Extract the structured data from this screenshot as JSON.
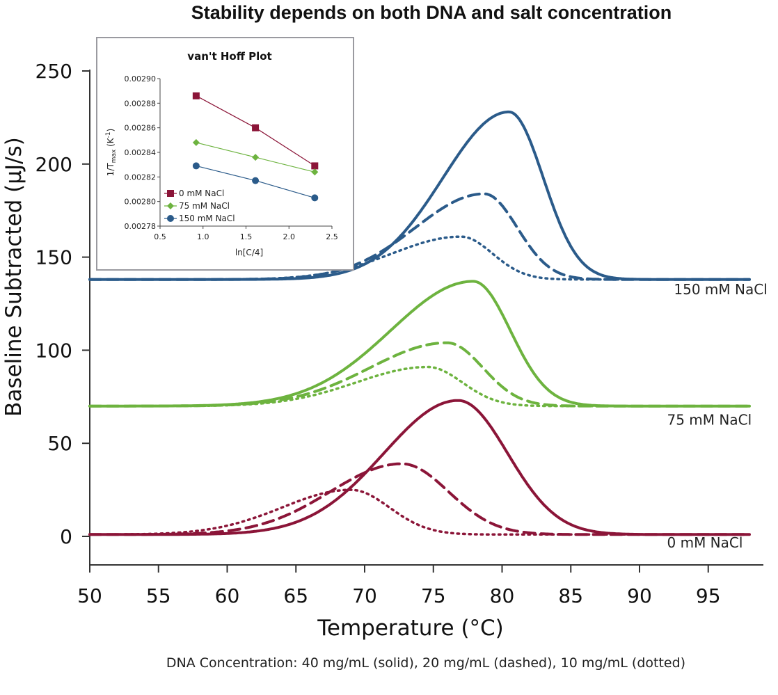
{
  "chart_data": [
    {
      "type": "line",
      "title": "Stability depends on both DNA and salt concentration",
      "xlabel": "Temperature (°C)",
      "ylabel": "Baseline Subtracted (µJ/s)",
      "xlim": [
        50,
        98
      ],
      "ylim": [
        -15,
        262
      ],
      "x_ticks": [
        "50",
        "55",
        "60",
        "65",
        "70",
        "75",
        "80",
        "85",
        "90",
        "95"
      ],
      "y_ticks": [
        "0",
        "50",
        "100",
        "150",
        "200",
        "250"
      ],
      "caption": "DNA Concentration: 40 mg/mL (solid), 20 mg/mL (dashed), 10 mg/mL (dotted)",
      "series": [
        {
          "name": "0 mM NaCl, 40 mg/mL",
          "salt": "0 mM NaCl",
          "style": "solid",
          "color": "#8b1538",
          "baseline": 1,
          "peak_x": 76.8,
          "peak_height": 72,
          "sigma_left": 5.4,
          "sigma_right": 3.6
        },
        {
          "name": "0 mM NaCl, 20 mg/mL",
          "salt": "0 mM NaCl",
          "style": "dashed",
          "color": "#8b1538",
          "baseline": 1,
          "peak_x": 72.7,
          "peak_height": 38,
          "sigma_left": 5.2,
          "sigma_right": 3.4
        },
        {
          "name": "0 mM NaCl, 10 mg/mL",
          "salt": "0 mM NaCl",
          "style": "dotted",
          "color": "#8b1538",
          "baseline": 1,
          "peak_x": 69.0,
          "peak_height": 24,
          "sigma_left": 5.0,
          "sigma_right": 2.8
        },
        {
          "name": "75 mM NaCl, 40 mg/mL",
          "salt": "75 mM NaCl",
          "style": "solid",
          "color": "#6db33f",
          "baseline": 70,
          "peak_x": 77.9,
          "peak_height": 67,
          "sigma_left": 6.0,
          "sigma_right": 2.7
        },
        {
          "name": "75 mM NaCl, 20 mg/mL",
          "salt": "75 mM NaCl",
          "style": "dashed",
          "color": "#6db33f",
          "baseline": 70,
          "peak_x": 76.0,
          "peak_height": 34,
          "sigma_left": 5.6,
          "sigma_right": 2.6
        },
        {
          "name": "75 mM NaCl, 10 mg/mL",
          "salt": "75 mM NaCl",
          "style": "dotted",
          "color": "#6db33f",
          "baseline": 70,
          "peak_x": 74.6,
          "peak_height": 21,
          "sigma_left": 5.2,
          "sigma_right": 2.5
        },
        {
          "name": "150 mM NaCl, 40 mg/mL",
          "salt": "150 mM NaCl",
          "style": "solid",
          "color": "#2b5b8a",
          "baseline": 138,
          "peak_x": 80.5,
          "peak_height": 90,
          "sigma_left": 4.8,
          "sigma_right": 2.5
        },
        {
          "name": "150 mM NaCl, 20 mg/mL",
          "salt": "150 mM NaCl",
          "style": "dashed",
          "color": "#2b5b8a",
          "baseline": 138,
          "peak_x": 78.7,
          "peak_height": 46,
          "sigma_left": 5.0,
          "sigma_right": 2.4
        },
        {
          "name": "150 mM NaCl, 10 mg/mL",
          "salt": "150 mM NaCl",
          "style": "dotted",
          "color": "#2b5b8a",
          "baseline": 138,
          "peak_x": 77.0,
          "peak_height": 23,
          "sigma_left": 5.0,
          "sigma_right": 2.3
        }
      ],
      "curve_labels": [
        {
          "text": "150 mM NaCl",
          "x": 92.5,
          "y": 130
        },
        {
          "text": "75 mM NaCl",
          "x": 92.0,
          "y": 60
        },
        {
          "text": "0 mM NaCl",
          "x": 92.0,
          "y": -6
        }
      ]
    },
    {
      "type": "line",
      "title": "van't Hoff Plot",
      "xlabel": "ln[C/4]",
      "ylabel_parts": {
        "pre": "1/T",
        "sub": "max",
        "mid": " (K",
        "sup": "-1",
        "post": ")"
      },
      "xlim": [
        0.5,
        2.5
      ],
      "ylim": [
        0.00278,
        0.0029
      ],
      "x_ticks": [
        "0.5",
        "1.0",
        "1.5",
        "2.0",
        "2.5"
      ],
      "y_ticks": [
        "0.00278",
        "0.00280",
        "0.00282",
        "0.00284",
        "0.00286",
        "0.00288",
        "0.00290"
      ],
      "series": [
        {
          "name": "0 mM NaCl",
          "color": "#8b1538",
          "marker": "square",
          "x": [
            0.92,
            1.61,
            2.3
          ],
          "y": [
            0.002886,
            0.00286,
            0.002829
          ]
        },
        {
          "name": "75 mM NaCl",
          "color": "#6db33f",
          "marker": "diamond",
          "x": [
            0.92,
            1.61,
            2.3
          ],
          "y": [
            0.002848,
            0.002836,
            0.002824
          ]
        },
        {
          "name": "150 mM NaCl",
          "color": "#2b5b8a",
          "marker": "circle",
          "x": [
            0.92,
            1.61,
            2.3
          ],
          "y": [
            0.002829,
            0.002817,
            0.002803
          ]
        }
      ]
    }
  ]
}
